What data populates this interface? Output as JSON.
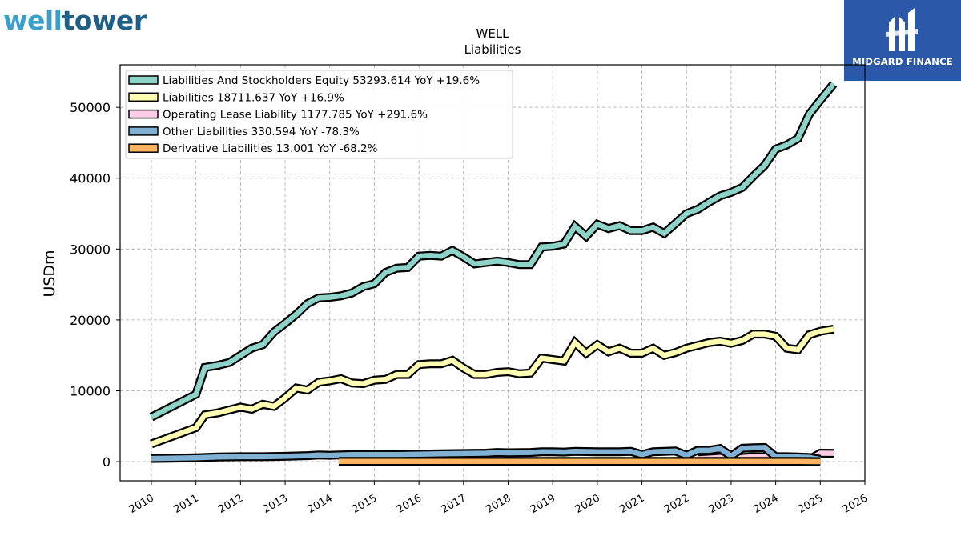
{
  "branding": {
    "left_logo_part1": "well",
    "left_logo_part2": "tower",
    "right_logo_name": "MIDGARD FINANCE"
  },
  "chart_data": {
    "type": "area",
    "title": "WELL",
    "subtitle": "Liabilities",
    "ylabel": "USDm",
    "xlabel": "",
    "xlim": [
      2009.3,
      2026.0
    ],
    "ylim": [
      -2700,
      56000
    ],
    "x_ticks": [
      2010,
      2011,
      2012,
      2013,
      2014,
      2015,
      2016,
      2017,
      2018,
      2019,
      2020,
      2021,
      2022,
      2023,
      2024,
      2025,
      2026
    ],
    "y_ticks": [
      0,
      10000,
      20000,
      30000,
      40000,
      50000
    ],
    "y_tick_labels": [
      "0",
      "10000",
      "20000",
      "30000",
      "40000",
      "50000"
    ],
    "grid": true,
    "legend_position": "top-left",
    "series": [
      {
        "name": "Liabilities And Stockholders Equity",
        "legend": "Liabilities And Stockholders Equity  53293.614 YoY +19.6%",
        "color": "#8dd3c7",
        "points": [
          [
            2010.0,
            6300
          ],
          [
            2011.0,
            9500
          ],
          [
            2011.2,
            13300
          ],
          [
            2011.5,
            13600
          ],
          [
            2011.75,
            14000
          ],
          [
            2012.0,
            15000
          ],
          [
            2012.25,
            16000
          ],
          [
            2012.5,
            16500
          ],
          [
            2012.75,
            18300
          ],
          [
            2013.0,
            19500
          ],
          [
            2013.25,
            20800
          ],
          [
            2013.5,
            22300
          ],
          [
            2013.75,
            23100
          ],
          [
            2014.0,
            23200
          ],
          [
            2014.25,
            23400
          ],
          [
            2014.5,
            23800
          ],
          [
            2014.75,
            24700
          ],
          [
            2015.0,
            25100
          ],
          [
            2015.25,
            26700
          ],
          [
            2015.5,
            27300
          ],
          [
            2015.75,
            27400
          ],
          [
            2016.0,
            29000
          ],
          [
            2016.25,
            29100
          ],
          [
            2016.5,
            29000
          ],
          [
            2016.75,
            29800
          ],
          [
            2017.0,
            28900
          ],
          [
            2017.25,
            27900
          ],
          [
            2017.5,
            28100
          ],
          [
            2017.75,
            28300
          ],
          [
            2018.0,
            28100
          ],
          [
            2018.25,
            27800
          ],
          [
            2018.5,
            27800
          ],
          [
            2018.75,
            30300
          ],
          [
            2019.0,
            30400
          ],
          [
            2019.25,
            30700
          ],
          [
            2019.5,
            33200
          ],
          [
            2019.75,
            31800
          ],
          [
            2020.0,
            33500
          ],
          [
            2020.25,
            32900
          ],
          [
            2020.5,
            33300
          ],
          [
            2020.75,
            32600
          ],
          [
            2021.0,
            32600
          ],
          [
            2021.25,
            33100
          ],
          [
            2021.5,
            32200
          ],
          [
            2021.75,
            33600
          ],
          [
            2022.0,
            35000
          ],
          [
            2022.25,
            35600
          ],
          [
            2022.5,
            36600
          ],
          [
            2022.75,
            37500
          ],
          [
            2023.0,
            38000
          ],
          [
            2023.25,
            38700
          ],
          [
            2023.5,
            40300
          ],
          [
            2023.75,
            41800
          ],
          [
            2024.0,
            44100
          ],
          [
            2024.25,
            44700
          ],
          [
            2024.5,
            45600
          ],
          [
            2024.75,
            49000
          ],
          [
            2025.0,
            51000
          ],
          [
            2025.3,
            53300
          ]
        ]
      },
      {
        "name": "Liabilities",
        "legend": "Liabilities  18711.637 YoY +16.9%",
        "color": "#ffffb3",
        "points": [
          [
            2010.0,
            2500
          ],
          [
            2011.0,
            4800
          ],
          [
            2011.2,
            6600
          ],
          [
            2011.5,
            6900
          ],
          [
            2011.75,
            7300
          ],
          [
            2012.0,
            7700
          ],
          [
            2012.25,
            7400
          ],
          [
            2012.5,
            8100
          ],
          [
            2012.75,
            7800
          ],
          [
            2013.0,
            9000
          ],
          [
            2013.25,
            10400
          ],
          [
            2013.5,
            10100
          ],
          [
            2013.75,
            11200
          ],
          [
            2014.0,
            11400
          ],
          [
            2014.25,
            11700
          ],
          [
            2014.5,
            11100
          ],
          [
            2014.75,
            11000
          ],
          [
            2015.0,
            11500
          ],
          [
            2015.25,
            11600
          ],
          [
            2015.5,
            12300
          ],
          [
            2015.75,
            12300
          ],
          [
            2016.0,
            13700
          ],
          [
            2016.25,
            13800
          ],
          [
            2016.5,
            13800
          ],
          [
            2016.75,
            14300
          ],
          [
            2017.0,
            13200
          ],
          [
            2017.25,
            12300
          ],
          [
            2017.5,
            12300
          ],
          [
            2017.75,
            12600
          ],
          [
            2018.0,
            12700
          ],
          [
            2018.25,
            12400
          ],
          [
            2018.5,
            12500
          ],
          [
            2018.75,
            14600
          ],
          [
            2019.0,
            14400
          ],
          [
            2019.25,
            14200
          ],
          [
            2019.5,
            16800
          ],
          [
            2019.75,
            15300
          ],
          [
            2020.0,
            16500
          ],
          [
            2020.25,
            15500
          ],
          [
            2020.5,
            16000
          ],
          [
            2020.75,
            15300
          ],
          [
            2021.0,
            15300
          ],
          [
            2021.25,
            16000
          ],
          [
            2021.5,
            15000
          ],
          [
            2021.75,
            15400
          ],
          [
            2022.0,
            16000
          ],
          [
            2022.25,
            16400
          ],
          [
            2022.5,
            16800
          ],
          [
            2022.75,
            17000
          ],
          [
            2023.0,
            16700
          ],
          [
            2023.25,
            17100
          ],
          [
            2023.5,
            18000
          ],
          [
            2023.75,
            18000
          ],
          [
            2024.0,
            17700
          ],
          [
            2024.25,
            16000
          ],
          [
            2024.5,
            15800
          ],
          [
            2024.75,
            17900
          ],
          [
            2025.0,
            18400
          ],
          [
            2025.3,
            18700
          ]
        ]
      },
      {
        "name": "Operating Lease Liability",
        "legend": "Operating Lease Liability  1177.785 YoY +291.6%",
        "color": "#fccde5",
        "points": [
          [
            2022.25,
            400
          ],
          [
            2022.5,
            500
          ],
          [
            2022.75,
            600
          ],
          [
            2023.0,
            300
          ],
          [
            2023.25,
            600
          ],
          [
            2023.5,
            700
          ],
          [
            2023.75,
            700
          ],
          [
            2024.0,
            400
          ],
          [
            2024.25,
            350
          ],
          [
            2024.5,
            300
          ],
          [
            2024.75,
            300
          ],
          [
            2025.0,
            1200
          ],
          [
            2025.3,
            1180
          ]
        ]
      },
      {
        "name": "Other Liabilities",
        "legend": "Other Liabilities  330.594 YoY -78.3%",
        "color": "#80b1d3",
        "points": [
          [
            2010.0,
            450
          ],
          [
            2011.0,
            550
          ],
          [
            2011.5,
            650
          ],
          [
            2012.0,
            700
          ],
          [
            2012.5,
            700
          ],
          [
            2013.0,
            750
          ],
          [
            2013.5,
            850
          ],
          [
            2013.75,
            950
          ],
          [
            2014.0,
            900
          ],
          [
            2014.5,
            1000
          ],
          [
            2015.0,
            1000
          ],
          [
            2015.5,
            1000
          ],
          [
            2016.0,
            1050
          ],
          [
            2016.5,
            1100
          ],
          [
            2017.0,
            1150
          ],
          [
            2017.5,
            1200
          ],
          [
            2017.75,
            1300
          ],
          [
            2018.0,
            1250
          ],
          [
            2018.5,
            1300
          ],
          [
            2018.75,
            1400
          ],
          [
            2019.0,
            1400
          ],
          [
            2019.25,
            1350
          ],
          [
            2019.5,
            1450
          ],
          [
            2020.0,
            1400
          ],
          [
            2020.5,
            1400
          ],
          [
            2020.75,
            1450
          ],
          [
            2021.0,
            1000
          ],
          [
            2021.25,
            1400
          ],
          [
            2021.5,
            1450
          ],
          [
            2021.75,
            1500
          ],
          [
            2022.0,
            900
          ],
          [
            2022.25,
            1600
          ],
          [
            2022.5,
            1600
          ],
          [
            2022.75,
            1850
          ],
          [
            2023.0,
            800
          ],
          [
            2023.25,
            1900
          ],
          [
            2023.5,
            1950
          ],
          [
            2023.75,
            2000
          ],
          [
            2024.0,
            700
          ],
          [
            2024.25,
            700
          ],
          [
            2024.5,
            650
          ],
          [
            2024.75,
            600
          ],
          [
            2025.0,
            330
          ]
        ]
      },
      {
        "name": "Derivative Liabilities",
        "legend": "Derivative Liabilities  13.001 YoY -68.2%",
        "color": "#fdb462",
        "points": [
          [
            2014.2,
            30
          ],
          [
            2015.0,
            30
          ],
          [
            2016.0,
            30
          ],
          [
            2017.0,
            30
          ],
          [
            2018.0,
            30
          ],
          [
            2019.0,
            30
          ],
          [
            2020.0,
            30
          ],
          [
            2021.0,
            30
          ],
          [
            2022.0,
            30
          ],
          [
            2023.0,
            30
          ],
          [
            2024.0,
            30
          ],
          [
            2024.5,
            30
          ],
          [
            2025.0,
            13
          ]
        ]
      }
    ]
  }
}
